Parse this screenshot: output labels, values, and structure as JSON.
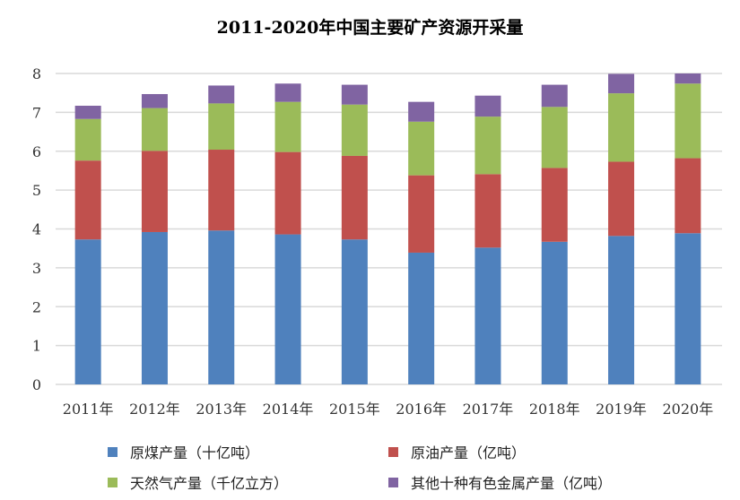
{
  "chart_data": {
    "type": "bar",
    "stacked": true,
    "title": "2011-2020年中国主要矿产资源开采量",
    "xlabel": "",
    "ylabel": "",
    "ylim": [
      0,
      8
    ],
    "yticks": [
      "0",
      "1",
      "2",
      "3",
      "4",
      "5",
      "6",
      "7",
      "8"
    ],
    "grid": true,
    "legend_position": "bottom",
    "categories": [
      "2011年",
      "2012年",
      "2013年",
      "2014年",
      "2015年",
      "2016年",
      "2017年",
      "2018年",
      "2019年",
      "2020年"
    ],
    "series": [
      {
        "name": "原煤产量（十亿吨）",
        "color": "#4F81BD",
        "values": [
          3.73,
          3.92,
          3.96,
          3.86,
          3.73,
          3.39,
          3.52,
          3.67,
          3.82,
          3.89
        ]
      },
      {
        "name": "原油产量（亿吨）",
        "color": "#C0504D",
        "values": [
          2.03,
          2.09,
          2.08,
          2.12,
          2.15,
          1.99,
          1.89,
          1.9,
          1.91,
          1.93
        ]
      },
      {
        "name": "天然气产量（千亿立方）",
        "color": "#9BBB59",
        "values": [
          1.07,
          1.1,
          1.19,
          1.29,
          1.32,
          1.38,
          1.48,
          1.57,
          1.76,
          1.92
        ]
      },
      {
        "name": "其他十种有色金属产量（亿吨）",
        "color": "#8064A2",
        "values": [
          0.34,
          0.36,
          0.46,
          0.47,
          0.51,
          0.51,
          0.54,
          0.57,
          0.5,
          0.26
        ]
      }
    ]
  }
}
